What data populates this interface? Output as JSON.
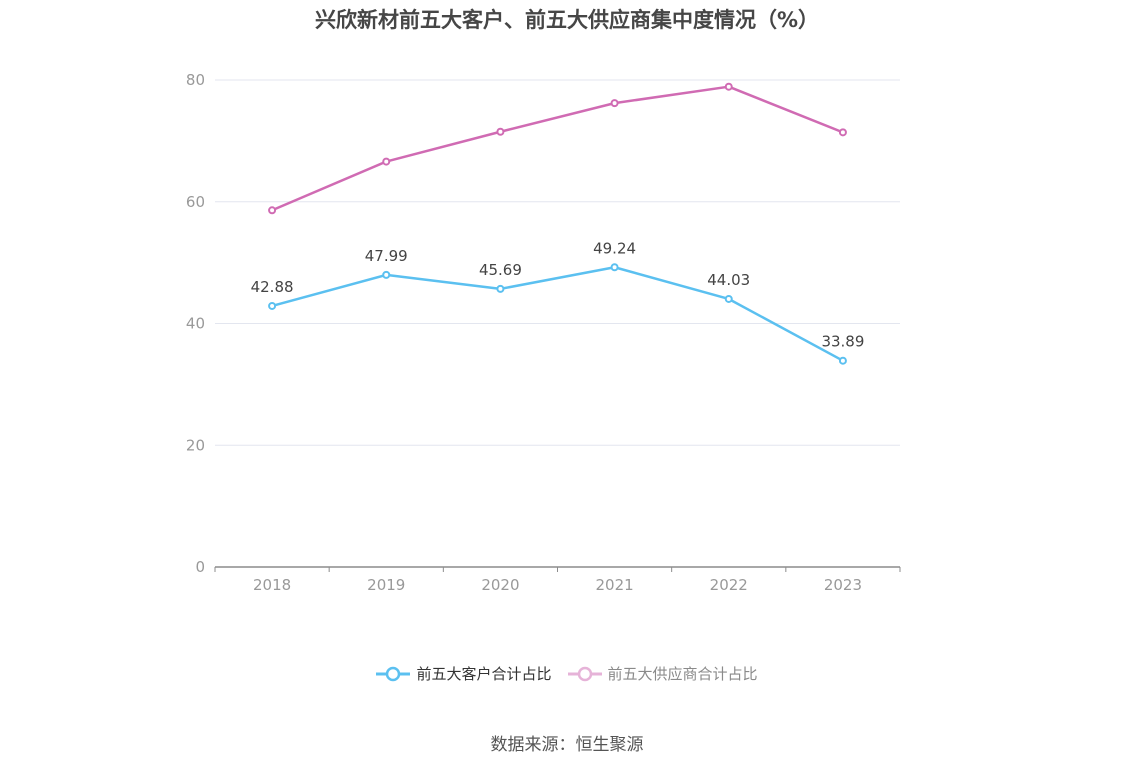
{
  "chart_data": {
    "type": "line",
    "title": "兴欣新材前五大客户、前五大供应商集中度情况（%）",
    "categories": [
      "2018",
      "2019",
      "2020",
      "2021",
      "2022",
      "2023"
    ],
    "series": [
      {
        "name": "前五大客户合计占比",
        "values": [
          42.88,
          47.99,
          45.69,
          49.24,
          44.03,
          33.89
        ],
        "color": "#5bc0f0",
        "show_labels": true
      },
      {
        "name": "前五大供应商合计占比",
        "values": [
          58.6,
          66.6,
          71.5,
          76.2,
          78.9,
          71.4
        ],
        "color": "#d06bb3",
        "show_labels": false
      }
    ],
    "yticks": [
      "0",
      "20",
      "40",
      "60",
      "80"
    ],
    "ylim": [
      0,
      80
    ],
    "grid": true,
    "legend_position": "bottom",
    "legend_inactive": [
      "前五大供应商合计占比"
    ]
  },
  "source": "数据来源：恒生聚源"
}
